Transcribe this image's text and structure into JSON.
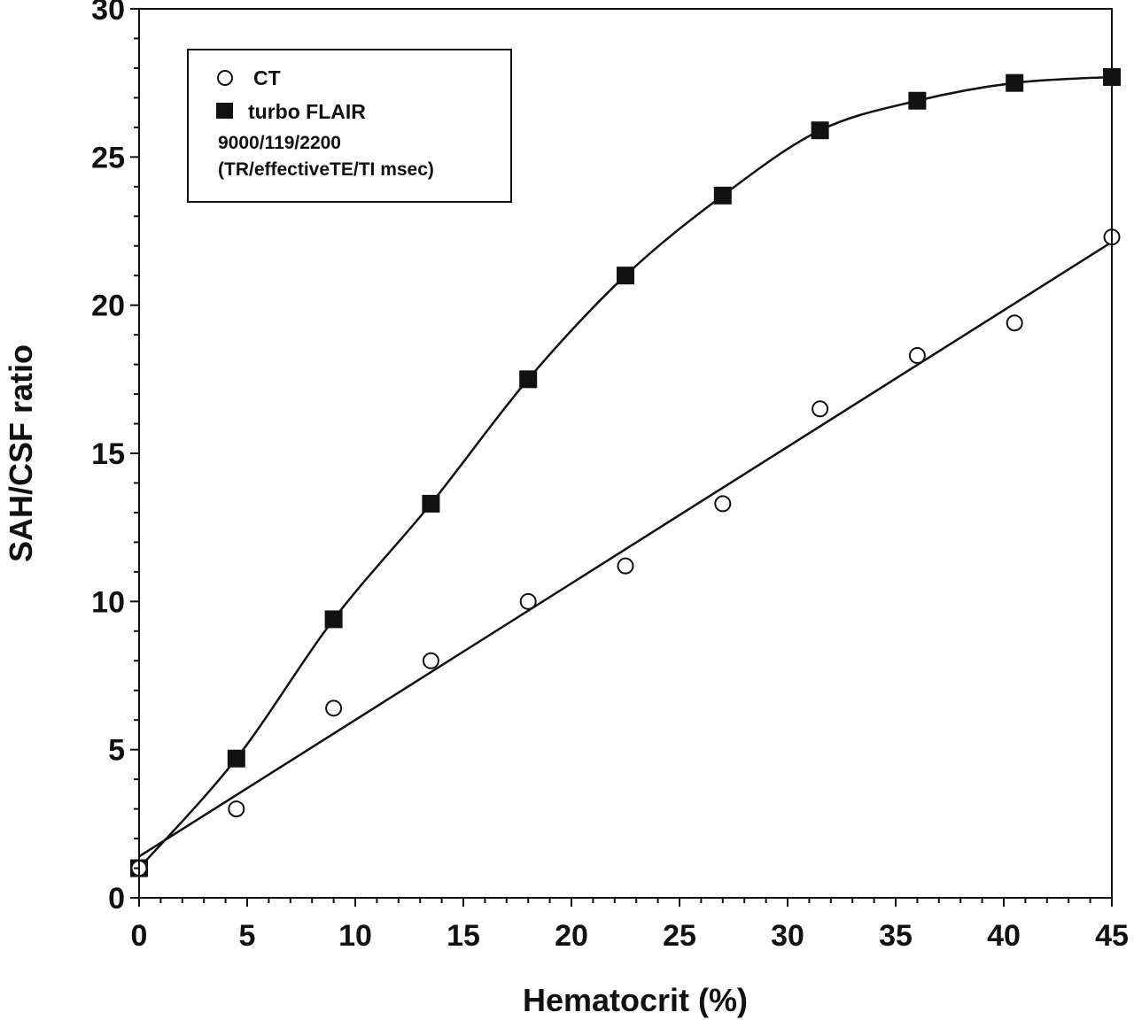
{
  "chart_data": {
    "type": "scatter",
    "xlabel": "Hematocrit (%)",
    "ylabel": "SAH/CSF ratio",
    "xlim": [
      0,
      45
    ],
    "ylim": [
      0,
      30
    ],
    "x_ticks": [
      0,
      5,
      10,
      15,
      20,
      25,
      30,
      35,
      40,
      45
    ],
    "y_ticks": [
      0,
      5,
      10,
      15,
      20,
      25,
      30
    ],
    "grid": false,
    "legend_position": "top-left",
    "legend_note": [
      "9000/119/2200",
      "(TR/effectiveTE/TI msec)"
    ],
    "series": [
      {
        "name": "CT",
        "marker": "open-circle",
        "fit": "linear",
        "x": [
          0,
          4.5,
          9,
          13.5,
          18,
          22.5,
          27,
          31.5,
          36,
          40.5,
          45
        ],
        "values": [
          1.0,
          3.0,
          6.4,
          8.0,
          10.0,
          11.2,
          13.3,
          16.5,
          18.3,
          19.4,
          22.3
        ]
      },
      {
        "name": "turbo FLAIR",
        "marker": "filled-square",
        "fit": "smooth-curve",
        "x": [
          0,
          4.5,
          9,
          13.5,
          18,
          22.5,
          27,
          31.5,
          36,
          40.5,
          45
        ],
        "values": [
          1.0,
          4.7,
          9.4,
          13.3,
          17.5,
          21.0,
          23.7,
          25.9,
          26.9,
          27.5,
          27.7
        ]
      }
    ]
  }
}
